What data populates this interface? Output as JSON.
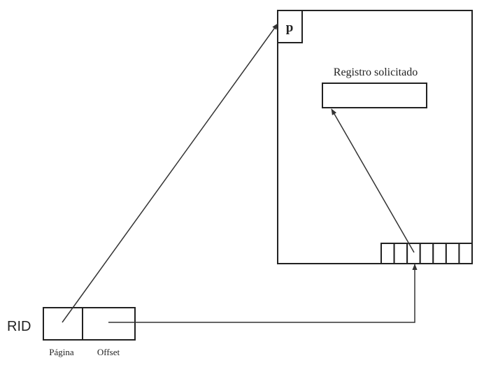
{
  "rid_label": "RID",
  "page_marker": "p",
  "record_label": "Registro solicitado",
  "pagina_label": "Página",
  "offset_label": "Offset",
  "slot_count": 7,
  "colors": {
    "stroke": "#222222",
    "background": "#ffffff"
  }
}
